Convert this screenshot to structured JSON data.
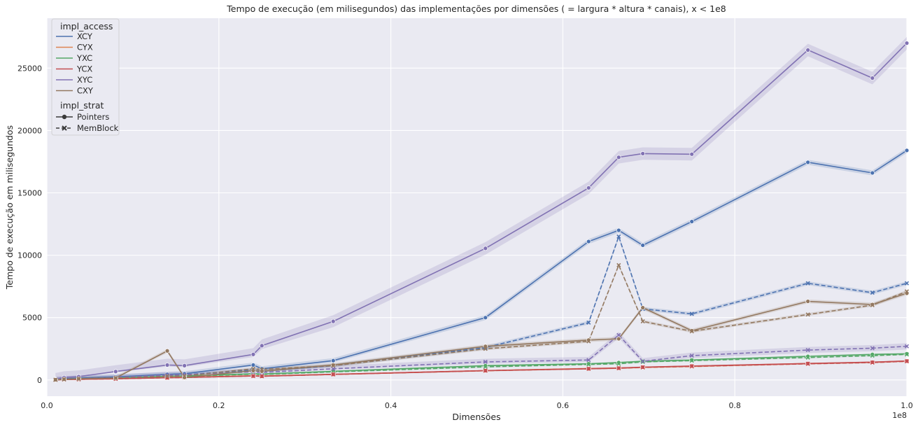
{
  "chart_data": {
    "type": "line",
    "title": "Tempo de execução (em milisegundos) das implementações por dimensões ( = largura * altura * canais), x < 1e8",
    "xlabel": "Dimensões",
    "ylabel": "Tempo de execução em milisegundos",
    "x_offset_label": "1e8",
    "xlim": [
      0,
      1.0
    ],
    "ylim": [
      -1300,
      29000
    ],
    "xticks": [
      0.0,
      0.2,
      0.4,
      0.6,
      0.8,
      1.0
    ],
    "xtick_labels": [
      "0.0",
      "0.2",
      "0.4",
      "0.6",
      "0.8",
      "1.0"
    ],
    "yticks": [
      0,
      5000,
      10000,
      15000,
      20000,
      25000
    ],
    "ytick_labels": [
      "0",
      "5000",
      "10000",
      "15000",
      "20000",
      "25000"
    ],
    "grid": true,
    "legend_position": "top-left",
    "legend": {
      "hue_title": "impl_access",
      "hue_entries": [
        {
          "label": "XCY",
          "color": "#4c72b0"
        },
        {
          "label": "CYX",
          "color": "#dd8452"
        },
        {
          "label": "YXC",
          "color": "#55a868"
        },
        {
          "label": "YCX",
          "color": "#c44e52"
        },
        {
          "label": "XYC",
          "color": "#8172b3"
        },
        {
          "label": "CXY",
          "color": "#937860"
        }
      ],
      "style_title": "impl_strat",
      "style_entries": [
        {
          "label": "Pointers",
          "dash": "solid",
          "marker": "circle"
        },
        {
          "label": "MemBlock",
          "dash": "dashed",
          "marker": "x"
        }
      ]
    },
    "x": [
      0.01,
      0.02,
      0.037,
      0.08,
      0.14,
      0.16,
      0.24,
      0.25,
      0.333,
      0.51,
      0.63,
      0.665,
      0.693,
      0.75,
      0.885,
      0.96,
      1.0
    ],
    "series": [
      {
        "name": "XCY",
        "strat": "Pointers",
        "color": "#4c72b0",
        "ci": 200,
        "values": [
          30,
          100,
          150,
          250,
          450,
          500,
          1200,
          900,
          1550,
          5000,
          11100,
          12000,
          10800,
          12700,
          17450,
          16600,
          18400
        ]
      },
      {
        "name": "XCY",
        "strat": "MemBlock",
        "color": "#4c72b0",
        "ci": 150,
        "values": [
          25,
          80,
          130,
          200,
          380,
          420,
          800,
          700,
          1150,
          2600,
          4600,
          11500,
          5700,
          5300,
          7750,
          7000,
          7750
        ]
      },
      {
        "name": "CYX",
        "strat": "Pointers",
        "color": "#dd8452",
        "ci": 60,
        "values": [
          10,
          40,
          60,
          100,
          200,
          220,
          340,
          320,
          450,
          750,
          920,
          960,
          1020,
          1100,
          1320,
          1420,
          1520
        ]
      },
      {
        "name": "CYX",
        "strat": "MemBlock",
        "color": "#dd8452",
        "ci": 60,
        "values": [
          10,
          40,
          60,
          100,
          190,
          210,
          330,
          310,
          440,
          740,
          900,
          940,
          1000,
          1080,
          1300,
          1400,
          1500
        ]
      },
      {
        "name": "YXC",
        "strat": "Pointers",
        "color": "#55a868",
        "ci": 60,
        "values": [
          15,
          50,
          90,
          150,
          300,
          320,
          500,
          480,
          700,
          1150,
          1300,
          1400,
          1500,
          1600,
          1900,
          2050,
          2100
        ]
      },
      {
        "name": "YXC",
        "strat": "MemBlock",
        "color": "#55a868",
        "ci": 60,
        "values": [
          15,
          50,
          80,
          140,
          280,
          300,
          460,
          440,
          650,
          1050,
          1250,
          1300,
          1450,
          1550,
          1800,
          1950,
          2050
        ]
      },
      {
        "name": "YCX",
        "strat": "Pointers",
        "color": "#c44e52",
        "ci": 50,
        "values": [
          8,
          35,
          50,
          90,
          180,
          200,
          320,
          300,
          450,
          750,
          900,
          950,
          1030,
          1120,
          1320,
          1430,
          1520
        ]
      },
      {
        "name": "YCX",
        "strat": "MemBlock",
        "color": "#c44e52",
        "ci": 50,
        "values": [
          8,
          35,
          50,
          90,
          180,
          200,
          320,
          300,
          450,
          750,
          900,
          950,
          1020,
          1100,
          1300,
          1400,
          1500
        ]
      },
      {
        "name": "XYC",
        "strat": "Pointers",
        "color": "#8172b3",
        "ci": 500,
        "values": [
          60,
          200,
          270,
          680,
          1200,
          1150,
          2050,
          2750,
          4700,
          10550,
          15400,
          17850,
          18150,
          18100,
          26450,
          24200,
          27000
        ]
      },
      {
        "name": "XYC",
        "strat": "MemBlock",
        "color": "#8172b3",
        "ci": 250,
        "values": [
          20,
          60,
          110,
          200,
          400,
          420,
          650,
          600,
          900,
          1450,
          1600,
          3600,
          1500,
          1950,
          2400,
          2550,
          2700
        ]
      },
      {
        "name": "CXY",
        "strat": "Pointers",
        "color": "#937860",
        "ci": 150,
        "values": [
          20,
          60,
          100,
          160,
          2330,
          200,
          750,
          700,
          1200,
          2700,
          3200,
          3300,
          5800,
          3950,
          6300,
          6050,
          6950
        ]
      },
      {
        "name": "CXY",
        "strat": "MemBlock",
        "color": "#937860",
        "ci": 120,
        "values": [
          20,
          60,
          100,
          160,
          300,
          320,
          900,
          850,
          1150,
          2500,
          3100,
          9200,
          4700,
          3900,
          5250,
          6000,
          7100
        ]
      }
    ]
  }
}
